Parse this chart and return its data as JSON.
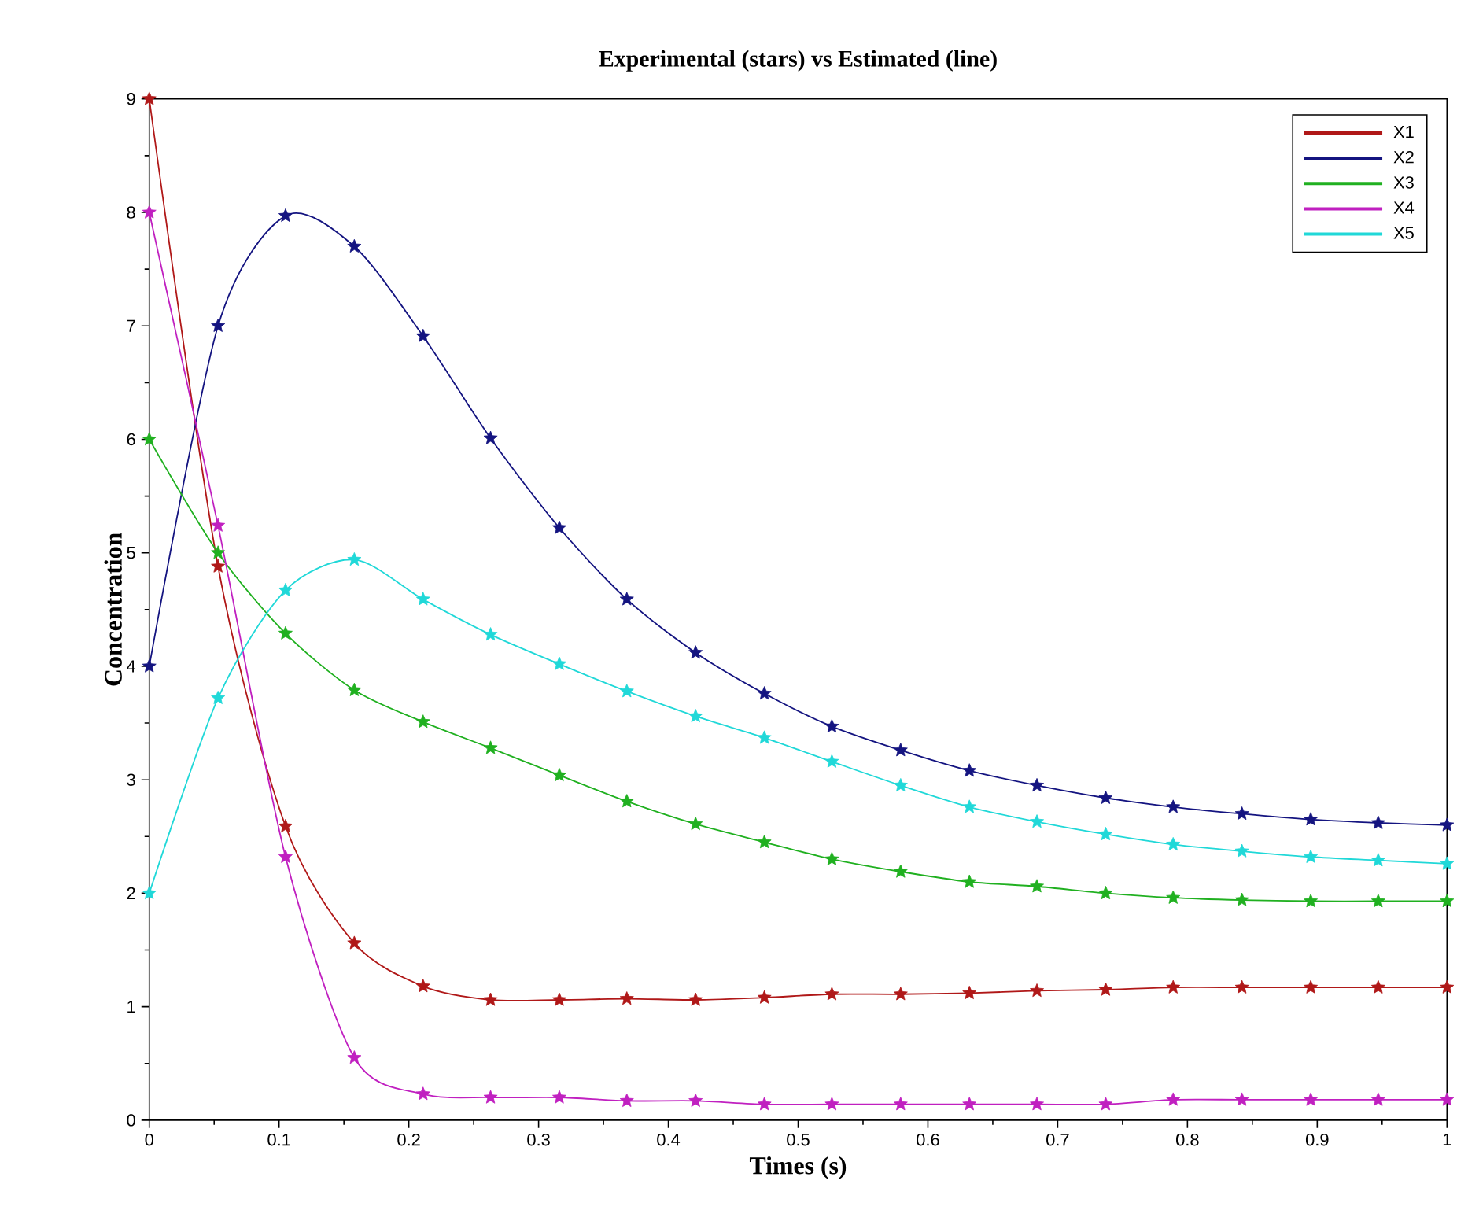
{
  "chart_data": {
    "type": "line",
    "title": "Experimental (stars) vs Estimated (line)",
    "xlabel": "Times (s)",
    "ylabel": "Concentration",
    "x": [
      0,
      0.053,
      0.105,
      0.158,
      0.211,
      0.263,
      0.316,
      0.368,
      0.421,
      0.474,
      0.526,
      0.579,
      0.632,
      0.684,
      0.737,
      0.789,
      0.842,
      0.895,
      0.947,
      1
    ],
    "series": [
      {
        "name": "X1",
        "color": "#b01818",
        "values": [
          9,
          4.88,
          2.59,
          1.56,
          1.18,
          1.06,
          1.06,
          1.07,
          1.06,
          1.08,
          1.11,
          1.11,
          1.12,
          1.14,
          1.15,
          1.17,
          1.17,
          1.17,
          1.17,
          1.17
        ]
      },
      {
        "name": "X2",
        "color": "#141480",
        "values": [
          4,
          7.0,
          7.97,
          7.7,
          6.91,
          6.01,
          5.22,
          4.59,
          4.12,
          3.76,
          3.47,
          3.26,
          3.08,
          2.95,
          2.84,
          2.76,
          2.7,
          2.65,
          2.62,
          2.6
        ]
      },
      {
        "name": "X3",
        "color": "#20b020",
        "values": [
          6,
          5.0,
          4.29,
          3.79,
          3.51,
          3.28,
          3.04,
          2.81,
          2.61,
          2.45,
          2.3,
          2.19,
          2.1,
          2.06,
          2.0,
          1.96,
          1.94,
          1.93,
          1.93,
          1.93
        ]
      },
      {
        "name": "X4",
        "color": "#c020c0",
        "values": [
          8,
          5.24,
          2.32,
          0.55,
          0.23,
          0.2,
          0.2,
          0.17,
          0.17,
          0.14,
          0.14,
          0.14,
          0.14,
          0.14,
          0.14,
          0.18,
          0.18,
          0.18,
          0.18,
          0.18
        ]
      },
      {
        "name": "X5",
        "color": "#20d8d8",
        "values": [
          2,
          3.72,
          4.67,
          4.94,
          4.59,
          4.28,
          4.02,
          3.78,
          3.56,
          3.37,
          3.16,
          2.95,
          2.76,
          2.63,
          2.52,
          2.43,
          2.37,
          2.32,
          2.29,
          2.26
        ]
      }
    ],
    "xlim": [
      0,
      1
    ],
    "ylim": [
      0,
      9
    ],
    "xticks": [
      0,
      0.1,
      0.2,
      0.3,
      0.4,
      0.5,
      0.6,
      0.7,
      0.8,
      0.9,
      1
    ],
    "yticks": [
      0,
      1,
      2,
      3,
      4,
      5,
      6,
      7,
      8,
      9
    ],
    "marker": "star",
    "line_style": "solid",
    "legend": "top right",
    "grid": false
  }
}
